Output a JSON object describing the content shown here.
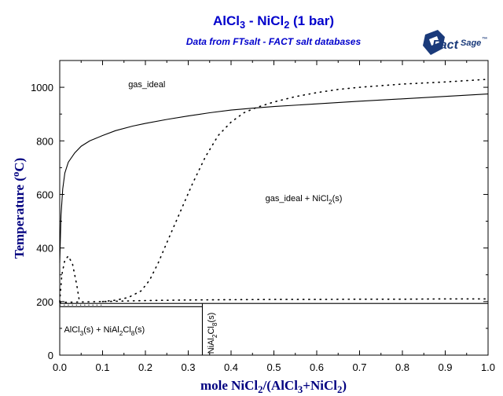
{
  "chart_data": {
    "type": "line",
    "title_parts": [
      "AlCl",
      "3",
      " - NiCl",
      "2",
      " (1 bar)"
    ],
    "subtitle": "Data from FTsalt - FACT salt databases",
    "logo": {
      "text_main": "Fact",
      "text_sage": "Sage",
      "mark": "™",
      "color": "#1a3a7a"
    },
    "xlabel_parts": [
      "mole NiCl",
      "2",
      "/(AlCl",
      "3",
      "+NiCl",
      "2",
      ")"
    ],
    "ylabel_parts": [
      "Temperature (",
      "o",
      "C)"
    ],
    "xlim": [
      0,
      1
    ],
    "ylim": [
      0,
      1100
    ],
    "x_ticks": [
      "0.0",
      "0.1",
      "0.2",
      "0.3",
      "0.4",
      "0.5",
      "0.6",
      "0.7",
      "0.8",
      "0.9",
      "1.0"
    ],
    "y_ticks": [
      "0",
      "200",
      "400",
      "600",
      "800",
      "1000"
    ],
    "grid": false,
    "series": [
      {
        "style": "solid",
        "x": [
          0.0,
          0.003,
          0.007,
          0.012,
          0.02,
          0.035,
          0.05,
          0.07,
          0.1,
          0.13,
          0.17,
          0.2,
          0.25,
          0.3,
          0.35,
          0.4,
          0.45,
          0.5,
          0.6,
          0.7,
          0.8,
          0.9,
          1.0
        ],
        "y": [
          345,
          520,
          620,
          680,
          720,
          755,
          780,
          800,
          820,
          838,
          855,
          865,
          880,
          893,
          905,
          915,
          922,
          928,
          938,
          948,
          957,
          966,
          975
        ]
      },
      {
        "style": "dotted",
        "x": [
          0.0,
          0.005,
          0.012,
          0.02,
          0.03,
          0.04,
          0.046
        ],
        "y": [
          200,
          300,
          355,
          370,
          340,
          260,
          200
        ]
      },
      {
        "style": "dotted",
        "x": [
          0.1,
          0.13,
          0.16,
          0.19,
          0.21,
          0.23,
          0.25,
          0.28,
          0.31,
          0.34,
          0.37,
          0.4,
          0.43,
          0.46,
          0.5,
          0.55,
          0.6,
          0.65,
          0.7,
          0.8,
          0.9,
          1.0
        ],
        "y": [
          200,
          205,
          215,
          240,
          280,
          345,
          420,
          530,
          640,
          740,
          820,
          870,
          905,
          925,
          945,
          965,
          980,
          992,
          1000,
          1012,
          1020,
          1030
        ]
      },
      {
        "style": "dotted",
        "x": [
          0.0,
          0.1,
          0.2,
          0.3,
          0.4,
          0.5,
          0.6,
          0.7,
          0.8,
          0.9,
          1.0
        ],
        "y": [
          197,
          200,
          204,
          206,
          207,
          208,
          208,
          209,
          209,
          210,
          210
        ]
      }
    ],
    "horizontal_lines": [
      {
        "y": 193,
        "x_from": 0.0,
        "x_to": 1.0,
        "style": "solid"
      },
      {
        "y": 181,
        "x_from": 0.0,
        "x_to": 0.333,
        "style": "solid"
      },
      {
        "y": 187,
        "x_from": 0.0,
        "x_to": 0.1,
        "style": "dotted"
      }
    ],
    "vertical_lines": [
      {
        "x": 0.333,
        "y_from": 0,
        "y_to": 193,
        "style": "solid"
      }
    ],
    "region_labels": [
      {
        "id": "gas-ideal",
        "parts": [
          "gas_ideal"
        ],
        "x": 0.16,
        "y": 1000,
        "rotate": false
      },
      {
        "id": "gas-nicl2",
        "parts": [
          "gas_ideal + NiCl",
          "2",
          "(s)"
        ],
        "x": 0.48,
        "y": 575,
        "rotate": false
      },
      {
        "id": "alcl3-nial2cl8",
        "parts": [
          "AlCl",
          "3",
          "(s) + NiAl",
          "2",
          "Cl",
          "8",
          "(s)"
        ],
        "x": 0.01,
        "y": 85,
        "rotate": false
      },
      {
        "id": "nial2cl8",
        "parts": [
          "NiAl",
          "2",
          "Cl",
          "8",
          "(s)"
        ],
        "x": 0.345,
        "y": 5,
        "rotate": true
      }
    ]
  }
}
